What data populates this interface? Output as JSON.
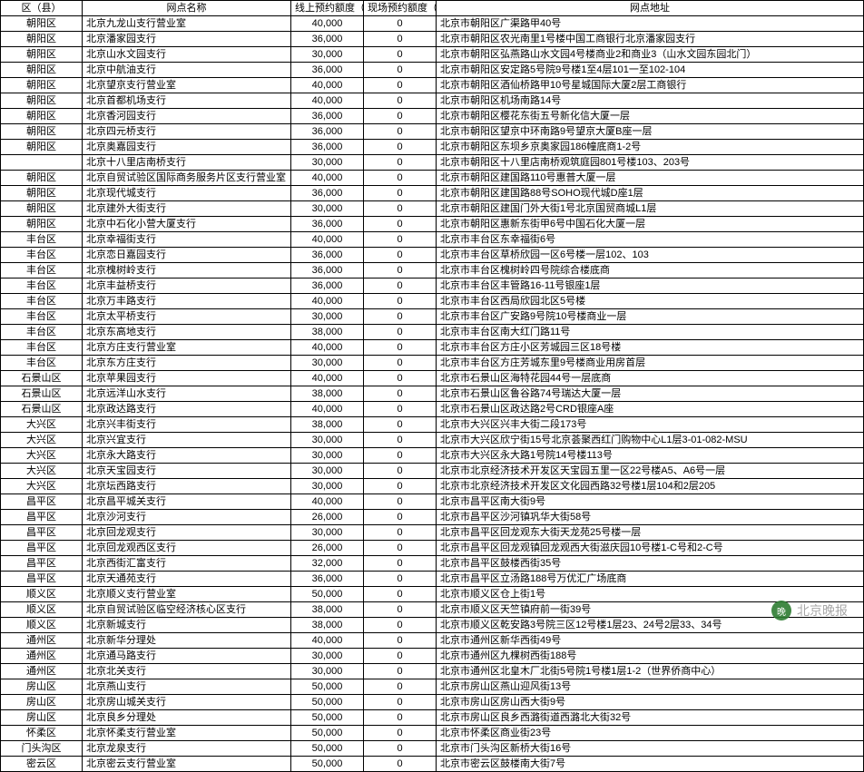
{
  "header": {
    "district": "区（县）",
    "branch": "网点名称",
    "online": "线上预约额度（枚）",
    "onsite": "现场预约额度（枚）",
    "address": "网点地址"
  },
  "watermark": {
    "icon": "晚",
    "text": "北京晚报"
  },
  "rows": [
    {
      "d": "朝阳区",
      "b": "北京九龙山支行营业室",
      "on": "40,000",
      "off": "0",
      "a": "北京市朝阳区广渠路甲40号"
    },
    {
      "d": "朝阳区",
      "b": "北京潘家园支行",
      "on": "36,000",
      "off": "0",
      "a": "北京市朝阳区农光南里1号楼中国工商银行北京潘家园支行"
    },
    {
      "d": "朝阳区",
      "b": "北京山水文园支行",
      "on": "30,000",
      "off": "0",
      "a": "北京市朝阳区弘燕路山水文园4号楼商业2和商业3（山水文园东园北门）"
    },
    {
      "d": "朝阳区",
      "b": "北京中航油支行",
      "on": "36,000",
      "off": "0",
      "a": "北京市朝阳区安定路5号院9号楼1至4层101一至102-104"
    },
    {
      "d": "朝阳区",
      "b": "北京望京支行营业室",
      "on": "40,000",
      "off": "0",
      "a": "北京市朝阳区酒仙桥路甲10号星城国际大厦2层工商银行"
    },
    {
      "d": "朝阳区",
      "b": "北京首都机场支行",
      "on": "40,000",
      "off": "0",
      "a": "北京市朝阳区机场南路14号"
    },
    {
      "d": "朝阳区",
      "b": "北京香河园支行",
      "on": "36,000",
      "off": "0",
      "a": "北京市朝阳区樱花东街五号新化信大厦一层"
    },
    {
      "d": "朝阳区",
      "b": "北京四元桥支行",
      "on": "36,000",
      "off": "0",
      "a": "北京市朝阳区望京中环南路9号望京大厦B座一层"
    },
    {
      "d": "朝阳区",
      "b": "北京奥嘉园支行",
      "on": "36,000",
      "off": "0",
      "a": "北京市朝阳区东坝乡京奥家园186幢底商1-2号"
    },
    {
      "d": "",
      "b": "北京十八里店南桥支行",
      "on": "30,000",
      "off": "0",
      "a": "北京市朝阳区十八里店南桥观筑庭园801号楼103、203号"
    },
    {
      "d": "朝阳区",
      "b": "北京自贸试验区国际商务服务片区支行营业室",
      "on": "40,000",
      "off": "0",
      "a": "北京市朝阳区建国路110号惠普大厦一层"
    },
    {
      "d": "朝阳区",
      "b": "北京现代城支行",
      "on": "36,000",
      "off": "0",
      "a": "北京市朝阳区建国路88号SOHO现代城D座1层"
    },
    {
      "d": "朝阳区",
      "b": "北京建外大街支行",
      "on": "30,000",
      "off": "0",
      "a": "北京市朝阳区建国门外大街1号北京国贸商城L1层"
    },
    {
      "d": "朝阳区",
      "b": "北京中石化小营大厦支行",
      "on": "36,000",
      "off": "0",
      "a": "北京市朝阳区惠新东街甲6号中国石化大厦一层"
    },
    {
      "d": "丰台区",
      "b": "北京幸福街支行",
      "on": "40,000",
      "off": "0",
      "a": "北京市丰台区东幸福街6号"
    },
    {
      "d": "丰台区",
      "b": "北京恋日嘉园支行",
      "on": "36,000",
      "off": "0",
      "a": "北京市丰台区草桥欣园一区6号楼一层102、103"
    },
    {
      "d": "丰台区",
      "b": "北京槐树岭支行",
      "on": "36,000",
      "off": "0",
      "a": "北京市丰台区槐树岭四号院综合楼底商"
    },
    {
      "d": "丰台区",
      "b": "北京丰益桥支行",
      "on": "36,000",
      "off": "0",
      "a": "北京市丰台区丰管路16-11号银座1层"
    },
    {
      "d": "丰台区",
      "b": "北京万丰路支行",
      "on": "40,000",
      "off": "0",
      "a": "北京市丰台区西局欣园北区5号楼"
    },
    {
      "d": "丰台区",
      "b": "北京太平桥支行",
      "on": "30,000",
      "off": "0",
      "a": "北京市丰台区广安路9号院10号楼商业一层"
    },
    {
      "d": "丰台区",
      "b": "北京东高地支行",
      "on": "38,000",
      "off": "0",
      "a": "北京市丰台区南大红门路11号"
    },
    {
      "d": "丰台区",
      "b": "北京方庄支行营业室",
      "on": "40,000",
      "off": "0",
      "a": "北京市丰台区方庄小区芳城园三区18号楼"
    },
    {
      "d": "丰台区",
      "b": "北京东方庄支行",
      "on": "30,000",
      "off": "0",
      "a": "北京市丰台区方庄芳城东里9号楼商业用房首层"
    },
    {
      "d": "石景山区",
      "b": "北京苹果园支行",
      "on": "40,000",
      "off": "0",
      "a": "北京市石景山区海特花园44号一层底商"
    },
    {
      "d": "石景山区",
      "b": "北京远洋山水支行",
      "on": "38,000",
      "off": "0",
      "a": "北京市石景山区鲁谷路74号瑞达大厦一层"
    },
    {
      "d": "石景山区",
      "b": "北京政达路支行",
      "on": "40,000",
      "off": "0",
      "a": "北京市石景山区政达路2号CRD银座A座"
    },
    {
      "d": "大兴区",
      "b": "北京兴丰街支行",
      "on": "38,000",
      "off": "0",
      "a": "北京市大兴区兴丰大街二段173号"
    },
    {
      "d": "大兴区",
      "b": "北京兴宜支行",
      "on": "30,000",
      "off": "0",
      "a": "北京市大兴区欣宁街15号北京荟聚西红门购物中心L1层3-01-082-MSU"
    },
    {
      "d": "大兴区",
      "b": "北京永大路支行",
      "on": "30,000",
      "off": "0",
      "a": "北京市大兴区永大路1号院14号楼113号"
    },
    {
      "d": "大兴区",
      "b": "北京天宝园支行",
      "on": "30,000",
      "off": "0",
      "a": "北京市北京经济技术开发区天宝园五里一区22号楼A5、A6号一层"
    },
    {
      "d": "大兴区",
      "b": "北京坛西路支行",
      "on": "30,000",
      "off": "0",
      "a": "北京市北京经济技术开发区文化园西路32号楼1层104和2层205"
    },
    {
      "d": "昌平区",
      "b": "北京昌平城关支行",
      "on": "40,000",
      "off": "0",
      "a": "北京市昌平区南大街9号"
    },
    {
      "d": "昌平区",
      "b": "北京沙河支行",
      "on": "26,000",
      "off": "0",
      "a": "北京市昌平区沙河镇巩华大街58号"
    },
    {
      "d": "昌平区",
      "b": "北京回龙观支行",
      "on": "30,000",
      "off": "0",
      "a": "北京市昌平区回龙观东大街天龙苑25号楼一层"
    },
    {
      "d": "昌平区",
      "b": "北京回龙观西区支行",
      "on": "26,000",
      "off": "0",
      "a": "北京市昌平区回龙观镇回龙观西大街滋庆园10号楼1-C号和2-C号"
    },
    {
      "d": "昌平区",
      "b": "北京西街汇富支行",
      "on": "32,000",
      "off": "0",
      "a": "北京市昌平区鼓楼西街35号"
    },
    {
      "d": "昌平区",
      "b": "北京天通苑支行",
      "on": "36,000",
      "off": "0",
      "a": "北京市昌平区立汤路188号万优汇广场底商"
    },
    {
      "d": "顺义区",
      "b": "北京顺义支行营业室",
      "on": "50,000",
      "off": "0",
      "a": "北京市顺义区仓上街1号"
    },
    {
      "d": "顺义区",
      "b": "北京自贸试验区临空经济核心区支行",
      "on": "38,000",
      "off": "0",
      "a": "北京市顺义区天竺镇府前一街39号"
    },
    {
      "d": "顺义区",
      "b": "北京新城支行",
      "on": "38,000",
      "off": "0",
      "a": "北京市顺义区乾安路3号院三区12号楼1层23、24号2层33、34号"
    },
    {
      "d": "通州区",
      "b": "北京新华分理处",
      "on": "40,000",
      "off": "0",
      "a": "北京市通州区新华西街49号"
    },
    {
      "d": "通州区",
      "b": "北京通马路支行",
      "on": "30,000",
      "off": "0",
      "a": "北京市通州区九棵树西街188号"
    },
    {
      "d": "通州区",
      "b": "北京北关支行",
      "on": "30,000",
      "off": "0",
      "a": "北京市通州区北皇木厂北街5号院1号楼1层1-2（世界侨商中心）"
    },
    {
      "d": "房山区",
      "b": "北京燕山支行",
      "on": "50,000",
      "off": "0",
      "a": "北京市房山区燕山迎风街13号"
    },
    {
      "d": "房山区",
      "b": "北京房山城关支行",
      "on": "50,000",
      "off": "0",
      "a": "北京市房山区房山西大街9号"
    },
    {
      "d": "房山区",
      "b": "北京良乡分理处",
      "on": "50,000",
      "off": "0",
      "a": "北京市房山区良乡西潞街道西潞北大街32号"
    },
    {
      "d": "怀柔区",
      "b": "北京怀柔支行营业室",
      "on": "50,000",
      "off": "0",
      "a": "北京市怀柔区商业街23号"
    },
    {
      "d": "门头沟区",
      "b": "北京龙泉支行",
      "on": "50,000",
      "off": "0",
      "a": "北京市门头沟区新桥大街16号"
    },
    {
      "d": "密云区",
      "b": "北京密云支行营业室",
      "on": "50,000",
      "off": "0",
      "a": "北京市密云区鼓楼南大街7号"
    }
  ]
}
